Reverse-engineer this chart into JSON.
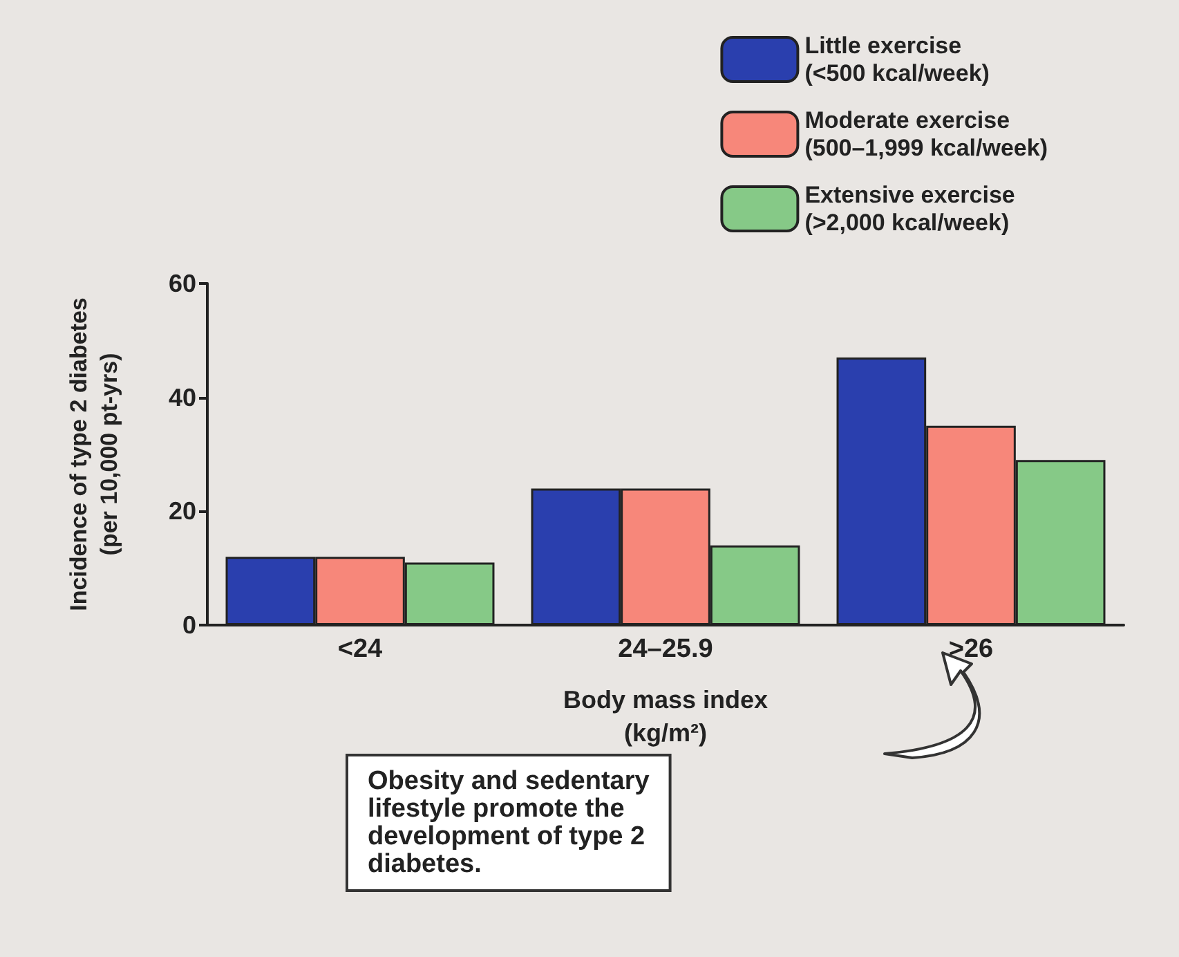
{
  "chart_data": {
    "type": "bar",
    "xlabel": "Body mass index\n(kg/m²)",
    "ylabel": "Incidence of type 2 diabetes\n(per 10,000 pt-yrs)",
    "categories": [
      "<24",
      "24–25.9",
      ">26"
    ],
    "series": [
      {
        "name": "Little exercise\n(<500 kcal/week)",
        "color": "#2a3fae",
        "values": [
          12,
          24,
          47
        ]
      },
      {
        "name": "Moderate exercise\n(500–1,999 kcal/week)",
        "color": "#f7877a",
        "values": [
          12,
          24,
          35
        ]
      },
      {
        "name": "Extensive exercise\n(>2,000 kcal/week)",
        "color": "#86c987",
        "values": [
          11,
          14,
          29
        ]
      }
    ],
    "ylim": [
      0,
      60
    ],
    "yticks": [
      0,
      20,
      40,
      60
    ],
    "grid": false,
    "legend": "top right",
    "annotations": [
      "Obesity and sedentary\nlifestyle promote the\ndevelopment of type 2\ndiabetes."
    ]
  }
}
